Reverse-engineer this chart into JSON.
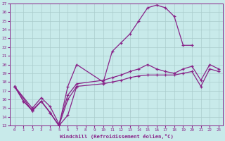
{
  "xlabel": "Windchill (Refroidissement éolien,°C)",
  "bg_color": "#c8eaea",
  "line_color": "#882288",
  "grid_color": "#aacccc",
  "xlim": [
    -0.5,
    23.5
  ],
  "ylim": [
    13,
    27
  ],
  "xticks": [
    0,
    1,
    2,
    3,
    4,
    5,
    6,
    7,
    8,
    9,
    10,
    11,
    12,
    13,
    14,
    15,
    16,
    17,
    18,
    19,
    20,
    21,
    22,
    23
  ],
  "yticks": [
    13,
    14,
    15,
    16,
    17,
    18,
    19,
    20,
    21,
    22,
    23,
    24,
    25,
    26,
    27
  ],
  "s1x": [
    0,
    1,
    2,
    3,
    4,
    5,
    6,
    7
  ],
  "s1y": [
    17.5,
    15.8,
    14.7,
    15.8,
    14.5,
    13.0,
    14.2,
    17.5
  ],
  "s2x": [
    0,
    1,
    2,
    3,
    4,
    5,
    6,
    7,
    10,
    11,
    12,
    13,
    14,
    15,
    16,
    17,
    18,
    19,
    20
  ],
  "s2y": [
    17.5,
    15.8,
    14.8,
    15.8,
    14.5,
    13.0,
    17.5,
    20.0,
    18.0,
    21.5,
    22.5,
    23.5,
    25.0,
    26.5,
    26.8,
    26.5,
    25.5,
    22.2,
    22.2
  ],
  "s3x": [
    0,
    2,
    3,
    4,
    5,
    6,
    7,
    10,
    11,
    12,
    13,
    14,
    15,
    16,
    17,
    18,
    19,
    20,
    21,
    22,
    23
  ],
  "s3y": [
    17.5,
    14.7,
    15.8,
    14.5,
    13.0,
    16.0,
    17.5,
    17.8,
    18.0,
    18.2,
    18.5,
    18.7,
    18.8,
    18.8,
    18.8,
    18.8,
    19.0,
    19.2,
    17.5,
    19.5,
    19.2
  ],
  "s4x": [
    0,
    2,
    3,
    4,
    5,
    6,
    7,
    10,
    11,
    12,
    13,
    14,
    15,
    16,
    17,
    18,
    19,
    20,
    21,
    22,
    23
  ],
  "s4y": [
    17.5,
    15.0,
    16.2,
    15.2,
    13.2,
    16.5,
    17.8,
    18.2,
    18.5,
    18.8,
    19.2,
    19.5,
    20.0,
    19.5,
    19.2,
    19.0,
    19.5,
    19.8,
    18.2,
    20.0,
    19.5
  ]
}
